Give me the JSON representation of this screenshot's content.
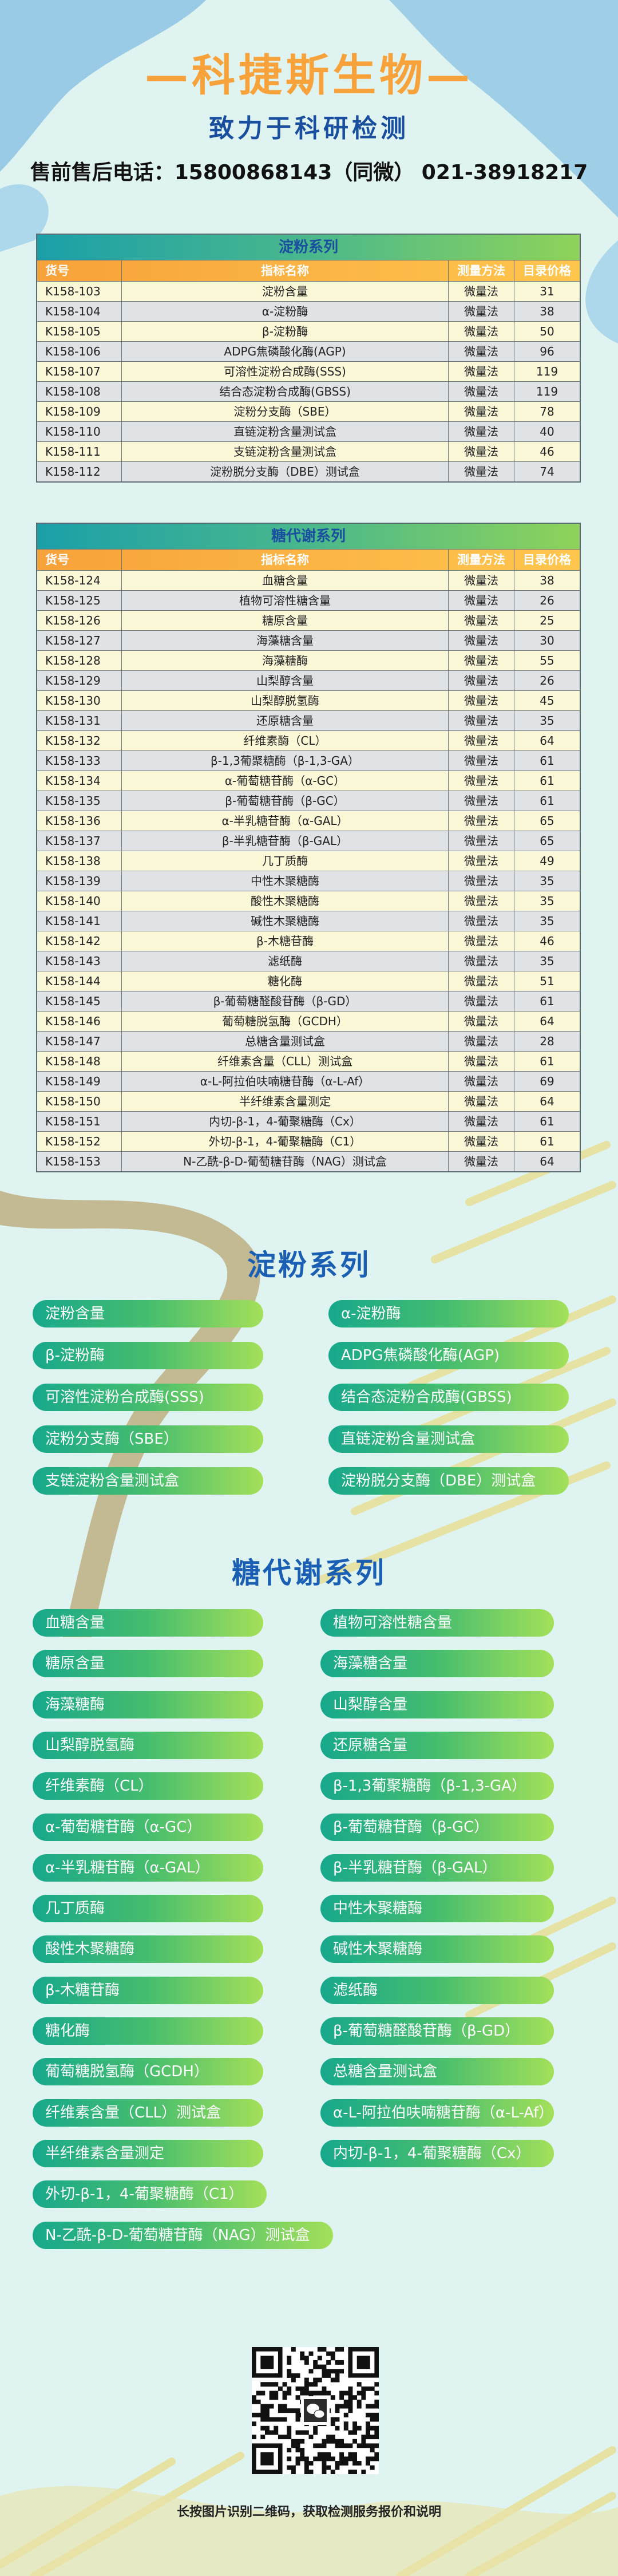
{
  "header": {
    "title": "—科捷斯生物—",
    "subtitle": "致力于科研检测",
    "phone": "售前售后电话：15800868143（同微）  021-38918217"
  },
  "tables": [
    {
      "title": "淀粉系列",
      "columns": [
        "货号",
        "指标名称",
        "测量方法",
        "目录价格"
      ],
      "rows": [
        [
          "K158-103",
          "淀粉含量",
          "微量法",
          31
        ],
        [
          "K158-104",
          "α-淀粉酶",
          "微量法",
          38
        ],
        [
          "K158-105",
          "β-淀粉酶",
          "微量法",
          50
        ],
        [
          "K158-106",
          "ADPG焦磷酸化酶(AGP)",
          "微量法",
          96
        ],
        [
          "K158-107",
          "可溶性淀粉合成酶(SSS)",
          "微量法",
          119
        ],
        [
          "K158-108",
          "结合态淀粉合成酶(GBSS)",
          "微量法",
          119
        ],
        [
          "K158-109",
          "淀粉分支酶（SBE）",
          "微量法",
          78
        ],
        [
          "K158-110",
          "直链淀粉含量测试盒",
          "微量法",
          40
        ],
        [
          "K158-111",
          "支链淀粉含量测试盒",
          "微量法",
          46
        ],
        [
          "K158-112",
          "淀粉脱分支酶（DBE）测试盒",
          "微量法",
          74
        ]
      ]
    },
    {
      "title": "糖代谢系列",
      "columns": [
        "货号",
        "指标名称",
        "测量方法",
        "目录价格"
      ],
      "rows": [
        [
          "K158-124",
          "血糖含量",
          "微量法",
          38
        ],
        [
          "K158-125",
          "植物可溶性糖含量",
          "微量法",
          26
        ],
        [
          "K158-126",
          "糖原含量",
          "微量法",
          25
        ],
        [
          "K158-127",
          "海藻糖含量",
          "微量法",
          30
        ],
        [
          "K158-128",
          "海藻糖酶",
          "微量法",
          55
        ],
        [
          "K158-129",
          "山梨醇含量",
          "微量法",
          26
        ],
        [
          "K158-130",
          "山梨醇脱氢酶",
          "微量法",
          45
        ],
        [
          "K158-131",
          "还原糖含量",
          "微量法",
          35
        ],
        [
          "K158-132",
          "纤维素酶（CL）",
          "微量法",
          64
        ],
        [
          "K158-133",
          "β-1,3葡聚糖酶（β-1,3-GA）",
          "微量法",
          61
        ],
        [
          "K158-134",
          "α-葡萄糖苷酶（α-GC）",
          "微量法",
          61
        ],
        [
          "K158-135",
          "β-葡萄糖苷酶（β-GC）",
          "微量法",
          61
        ],
        [
          "K158-136",
          "α-半乳糖苷酶（α-GAL）",
          "微量法",
          65
        ],
        [
          "K158-137",
          "β-半乳糖苷酶（β-GAL）",
          "微量法",
          65
        ],
        [
          "K158-138",
          "几丁质酶",
          "微量法",
          49
        ],
        [
          "K158-139",
          "中性木聚糖酶",
          "微量法",
          35
        ],
        [
          "K158-140",
          "酸性木聚糖酶",
          "微量法",
          35
        ],
        [
          "K158-141",
          "碱性木聚糖酶",
          "微量法",
          35
        ],
        [
          "K158-142",
          "β-木糖苷酶",
          "微量法",
          46
        ],
        [
          "K158-143",
          "滤纸酶",
          "微量法",
          35
        ],
        [
          "K158-144",
          "糖化酶",
          "微量法",
          51
        ],
        [
          "K158-145",
          "β-葡萄糖醛酸苷酶（β-GD）",
          "微量法",
          61
        ],
        [
          "K158-146",
          "葡萄糖脱氢酶（GCDH）",
          "微量法",
          64
        ],
        [
          "K158-147",
          "总糖含量测试盒",
          "微量法",
          28
        ],
        [
          "K158-148",
          "纤维素含量（CLL）测试盒",
          "微量法",
          61
        ],
        [
          "K158-149",
          "α-L-阿拉伯呋喃糖苷酶（α-L-Af）",
          "微量法",
          69
        ],
        [
          "K158-150",
          "半纤维素含量测定",
          "微量法",
          64
        ],
        [
          "K158-151",
          "内切-β-1，4-葡聚糖酶（Cx）",
          "微量法",
          61
        ],
        [
          "K158-152",
          "外切-β-1，4-葡聚糖酶（C1）",
          "微量法",
          61
        ],
        [
          "K158-153",
          "N-乙酰-β-D-葡萄糖苷酶（NAG）测试盒",
          "微量法",
          64
        ]
      ]
    }
  ],
  "footer": {
    "caption": "长按图片识别二维码，获取检测服务报价和说明"
  }
}
